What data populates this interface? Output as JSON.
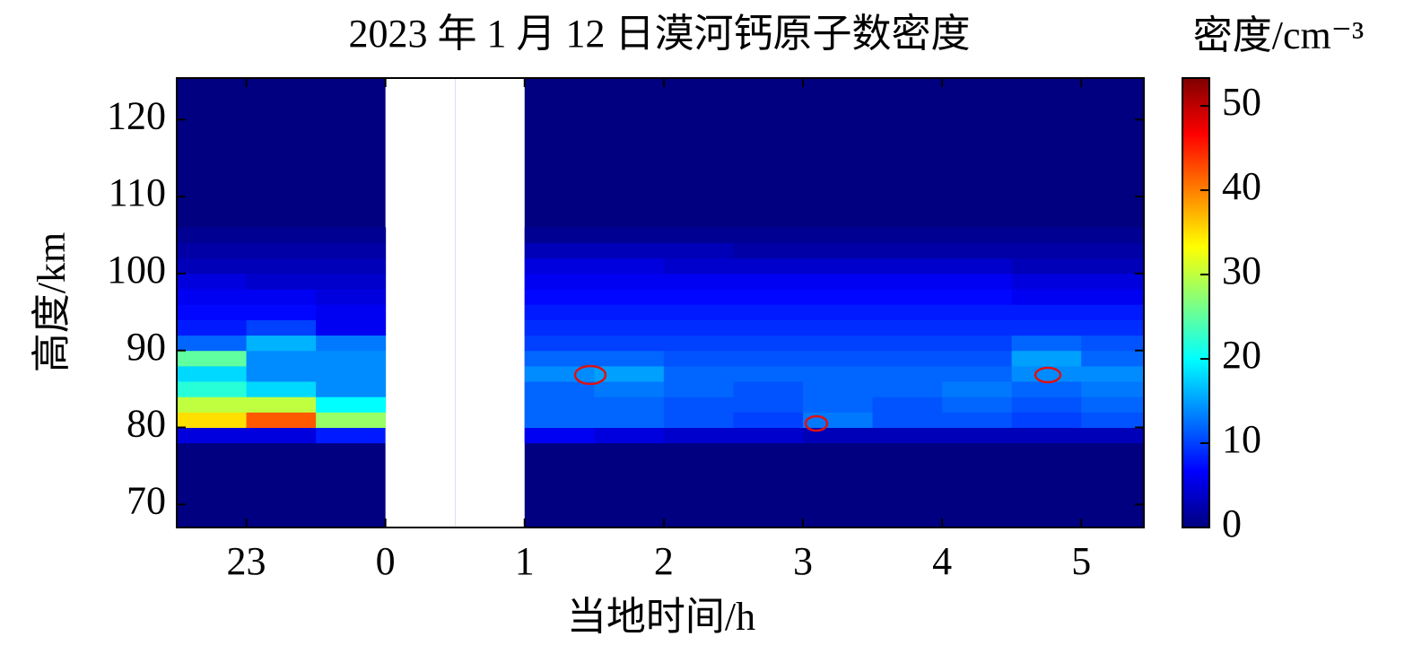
{
  "chart_data": {
    "type": "heatmap",
    "title": "2023 年 1 月 12 日漠河钙原子数密度",
    "xlabel": "当地时间/h",
    "ylabel": "高度/km",
    "xlim": [
      -1.5,
      5.45
    ],
    "ylim": [
      67,
      125.4
    ],
    "xticks": [
      {
        "value": -1,
        "label": "23"
      },
      0,
      1,
      2,
      3,
      4,
      5
    ],
    "yticks": [
      70,
      80,
      90,
      100,
      110,
      120
    ],
    "xbins": [
      -1.5,
      -1.0,
      -0.5,
      0,
      0.5,
      1.0,
      1.5,
      2.0,
      2.5,
      3.0,
      3.5,
      4.0,
      4.5,
      5.0,
      5.45
    ],
    "ybins": [
      78,
      80,
      82,
      84,
      86,
      88,
      90,
      92,
      94,
      96,
      98,
      100,
      102,
      104,
      106
    ],
    "values": [
      [
        5,
        5,
        8,
        null,
        null,
        6,
        5,
        4,
        4,
        3,
        3,
        3,
        3,
        3
      ],
      [
        35,
        42,
        28,
        null,
        null,
        12,
        12,
        11,
        10,
        13,
        11,
        11,
        10,
        11
      ],
      [
        30,
        30,
        20,
        null,
        null,
        12,
        12,
        11,
        11,
        12,
        11,
        12,
        11,
        12
      ],
      [
        22,
        18,
        14,
        null,
        null,
        12,
        13,
        12,
        11,
        12,
        12,
        13,
        12,
        13
      ],
      [
        18,
        14,
        14,
        null,
        null,
        14,
        15,
        12,
        12,
        12,
        12,
        12,
        14,
        14
      ],
      [
        25,
        14,
        14,
        null,
        null,
        12,
        12,
        11,
        11,
        11,
        11,
        11,
        15,
        12
      ],
      [
        12,
        16,
        13,
        null,
        null,
        10,
        10,
        10,
        10,
        10,
        10,
        10,
        12,
        11
      ],
      [
        8,
        10,
        6,
        null,
        null,
        9,
        9,
        9,
        9,
        9,
        9,
        9,
        9,
        9
      ],
      [
        7,
        7,
        6,
        null,
        null,
        8,
        8,
        8,
        8,
        8,
        8,
        8,
        8,
        8
      ],
      [
        6,
        6,
        5,
        null,
        null,
        7,
        7,
        7,
        7,
        7,
        7,
        7,
        6,
        6
      ],
      [
        5,
        4,
        4,
        null,
        null,
        6,
        6,
        6,
        6,
        6,
        6,
        6,
        5,
        5
      ],
      [
        3,
        3,
        3,
        null,
        null,
        5,
        5,
        4,
        4,
        4,
        4,
        4,
        3,
        3
      ],
      [
        2,
        2,
        2,
        null,
        null,
        3,
        3,
        3,
        2,
        2,
        2,
        2,
        2,
        2
      ],
      [
        1,
        1,
        1,
        null,
        null,
        1,
        1,
        1,
        1,
        1,
        1,
        1,
        1,
        1
      ]
    ],
    "colormap": "jet",
    "colorbar": {
      "label": "密度/cm⁻³",
      "lim": [
        0,
        53.3
      ],
      "ticks": [
        0,
        10,
        20,
        30,
        40,
        50
      ]
    }
  }
}
